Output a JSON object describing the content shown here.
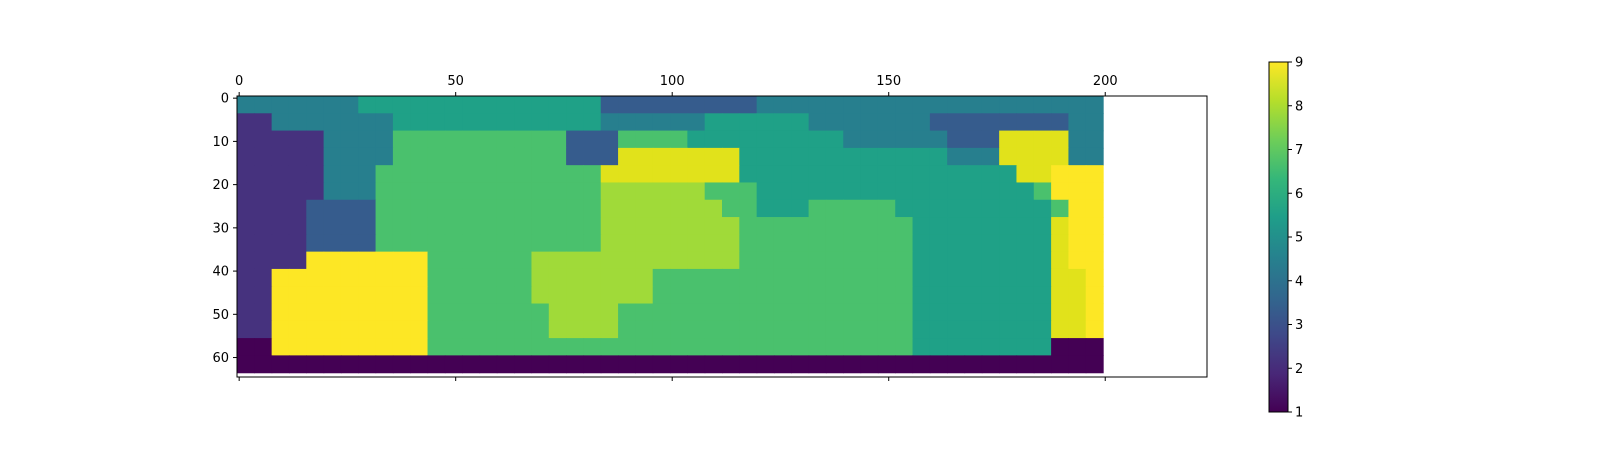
{
  "chart_data": {
    "type": "heatmap",
    "title": "",
    "xlabel": "",
    "ylabel": "",
    "colormap": "viridis",
    "xlim": [
      0,
      224
    ],
    "ylim": [
      0,
      65
    ],
    "x_ticks": [
      0,
      50,
      100,
      150,
      200
    ],
    "y_ticks": [
      0,
      10,
      20,
      30,
      40,
      50,
      60
    ],
    "x_tick_position": "top",
    "colorbar": {
      "min": 1,
      "max": 9,
      "ticks": [
        1,
        2,
        3,
        4,
        5,
        6,
        7,
        8,
        9
      ]
    },
    "grid": false,
    "cell_size": 4,
    "rows": [
      "44444445555555555555533333333344444444444444444444",
      "22444444455555555555544444455555544444443333333344",
      "22222444466666666663336666555555555444444333888844",
      "22222444466666666663338888888555555555555444888844",
      "22222444666666666666688888888555555555555555588999",
      "22222444666666666666677777766655555555555555556999",
      "22223333666666666666677777776655566666555555555699",
      "22223333666666666666677777777666666666655555555899",
      "22223333666666666666677777777666666666655555555899",
      "22229999999666666777777777777666666666655555555899",
      "22999999999666666777777766666666666666655555555889",
      "22999999999666666777777766666666666666655555555889",
      "22999999999666666677776666666666666666655555555889",
      "22999999999666666677776666666666666666655555555889",
      "11999999999666666666666666666666666666655555555111",
      "11111111111111111111111111111111111111111111111111"
    ]
  }
}
